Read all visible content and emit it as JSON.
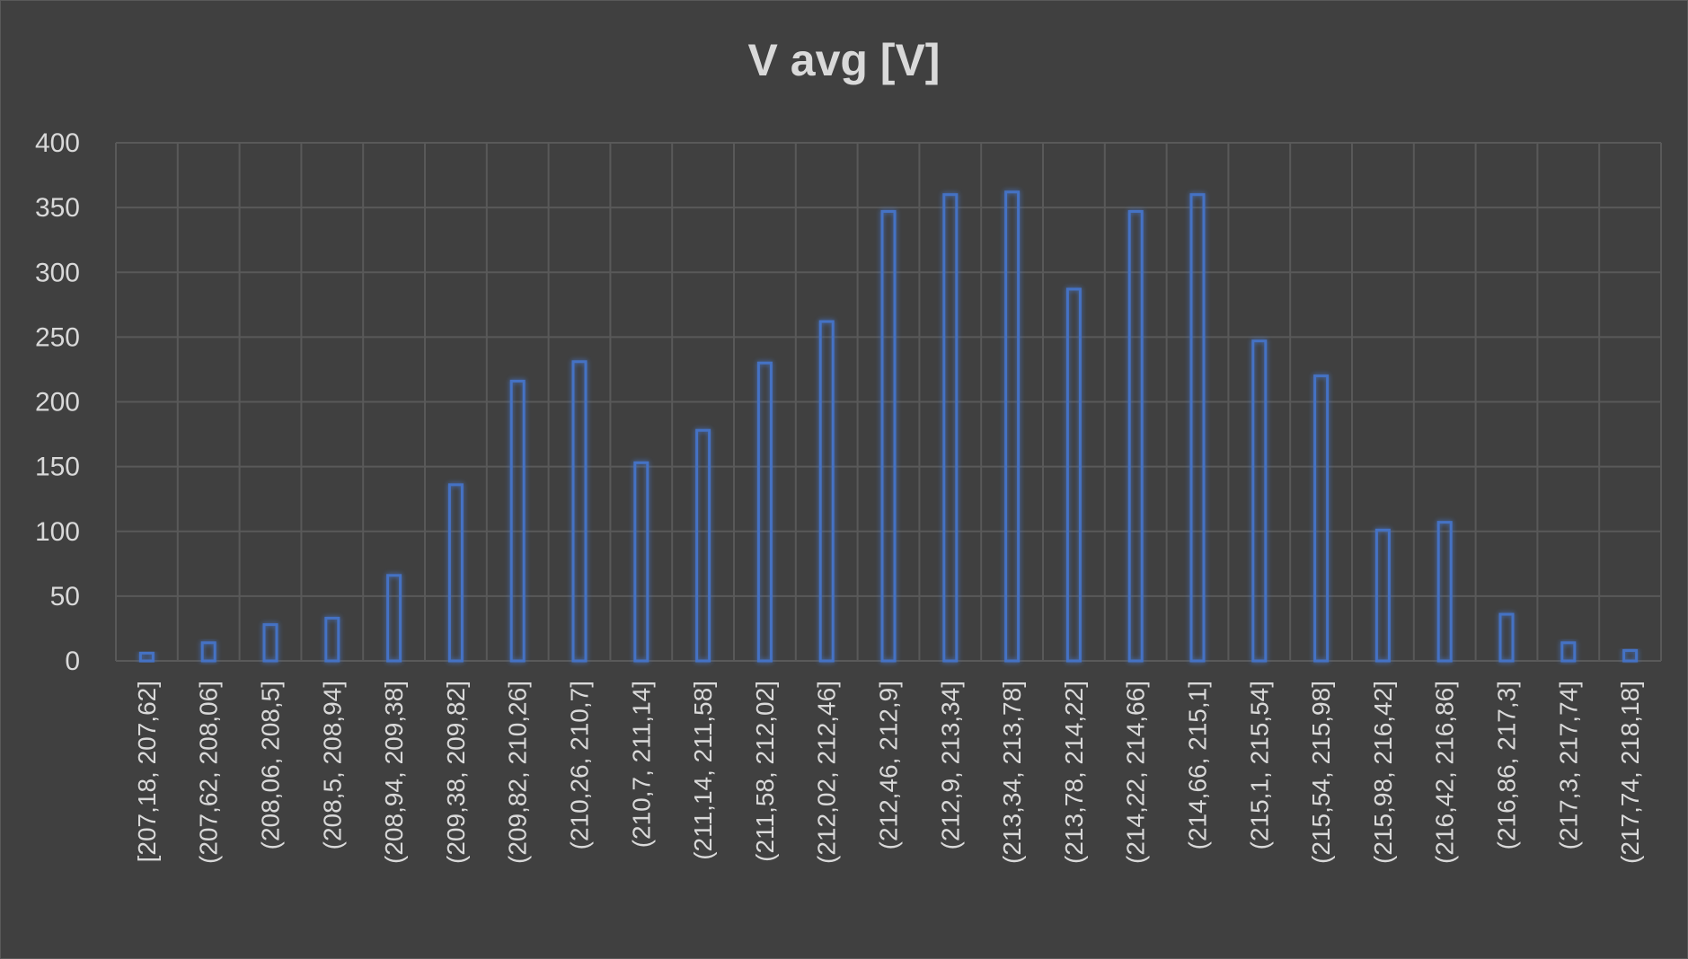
{
  "chart_data": {
    "type": "bar",
    "title": "V avg [V]",
    "xlabel": "",
    "ylabel": "",
    "ylim": [
      0,
      400
    ],
    "yticks": [
      0,
      50,
      100,
      150,
      200,
      250,
      300,
      350,
      400
    ],
    "grid": true,
    "legend": "none",
    "colors": {
      "background": "#404040",
      "bar_stroke": "#4472c4",
      "gridline": "#595959",
      "text": "#d9d9d9"
    },
    "categories": [
      "[207,18, 207,62]",
      "(207,62, 208,06]",
      "(208,06, 208,5]",
      "(208,5, 208,94]",
      "(208,94, 209,38]",
      "(209,38, 209,82]",
      "(209,82, 210,26]",
      "(210,26, 210,7]",
      "(210,7, 211,14]",
      "(211,14, 211,58]",
      "(211,58, 212,02]",
      "(212,02, 212,46]",
      "(212,46, 212,9]",
      "(212,9, 213,34]",
      "(213,34, 213,78]",
      "(213,78, 214,22]",
      "(214,22, 214,66]",
      "(214,66, 215,1]",
      "(215,1, 215,54]",
      "(215,54, 215,98]",
      "(215,98, 216,42]",
      "(216,42, 216,86]",
      "(216,86, 217,3]",
      "(217,3, 217,74]",
      "(217,74, 218,18]"
    ],
    "values": [
      6,
      14,
      28,
      33,
      66,
      136,
      216,
      231,
      153,
      178,
      230,
      262,
      347,
      360,
      362,
      287,
      347,
      360,
      247,
      220,
      101,
      107,
      36,
      14,
      8
    ]
  }
}
